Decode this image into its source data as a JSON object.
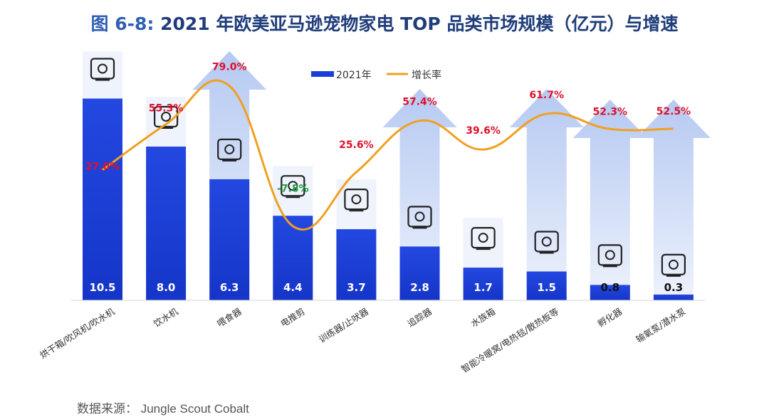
{
  "header": {
    "title_prefix": "图 6-8:",
    "title_main": "2021 年欧美亚马逊宠物家电 TOP 品类市场规模（亿元）与增速"
  },
  "source": "数据来源：  Jungle Scout Cobalt",
  "chart_data": {
    "type": "bar",
    "title": "2021 年欧美亚马逊宠物家电 TOP 品类市场规模（亿元）与增速",
    "categories": [
      "烘干箱/吹风机/吹水机",
      "饮水机",
      "喂食器",
      "电推剪",
      "训练器/止吠器",
      "追踪器",
      "水族箱",
      "智能冷暖窝/电热毯/散热板等",
      "孵化器",
      "输氧泵/潜水泵"
    ],
    "series": [
      {
        "name": "2021年",
        "kind": "bar",
        "values": [
          10.5,
          8.0,
          6.3,
          4.4,
          3.7,
          2.8,
          1.7,
          1.5,
          0.8,
          0.3
        ],
        "labels": [
          "10.5",
          "8.0",
          "6.3",
          "4.4",
          "3.7",
          "2.8",
          "1.7",
          "1.5",
          "0.8",
          "0.3"
        ]
      },
      {
        "name": "增长率",
        "kind": "line",
        "values": [
          27.0,
          55.3,
          79.0,
          -7.8,
          25.6,
          57.4,
          39.6,
          61.7,
          52.3,
          52.5
        ],
        "labels": [
          "27.0%",
          "55.3%",
          "79.0%",
          "-7.8%",
          "25.6%",
          "57.4%",
          "39.6%",
          "61.7%",
          "52.3%",
          "52.5%"
        ]
      }
    ],
    "legend_position": "top-center",
    "colors": {
      "bar": "#1a3fd6",
      "line": "#f0a020",
      "positive": "#e0102a",
      "negative": "#22a040",
      "arrow": "#c9d8f5"
    },
    "icons": [
      "dryer-icon",
      "water-fountain-icon",
      "feeder-icon",
      "clipper-icon",
      "trainer-collar-icon",
      "tracker-collar-icon",
      "aquarium-icon",
      "heated-pad-icon",
      "incubator-icon",
      "air-pump-icon"
    ]
  }
}
